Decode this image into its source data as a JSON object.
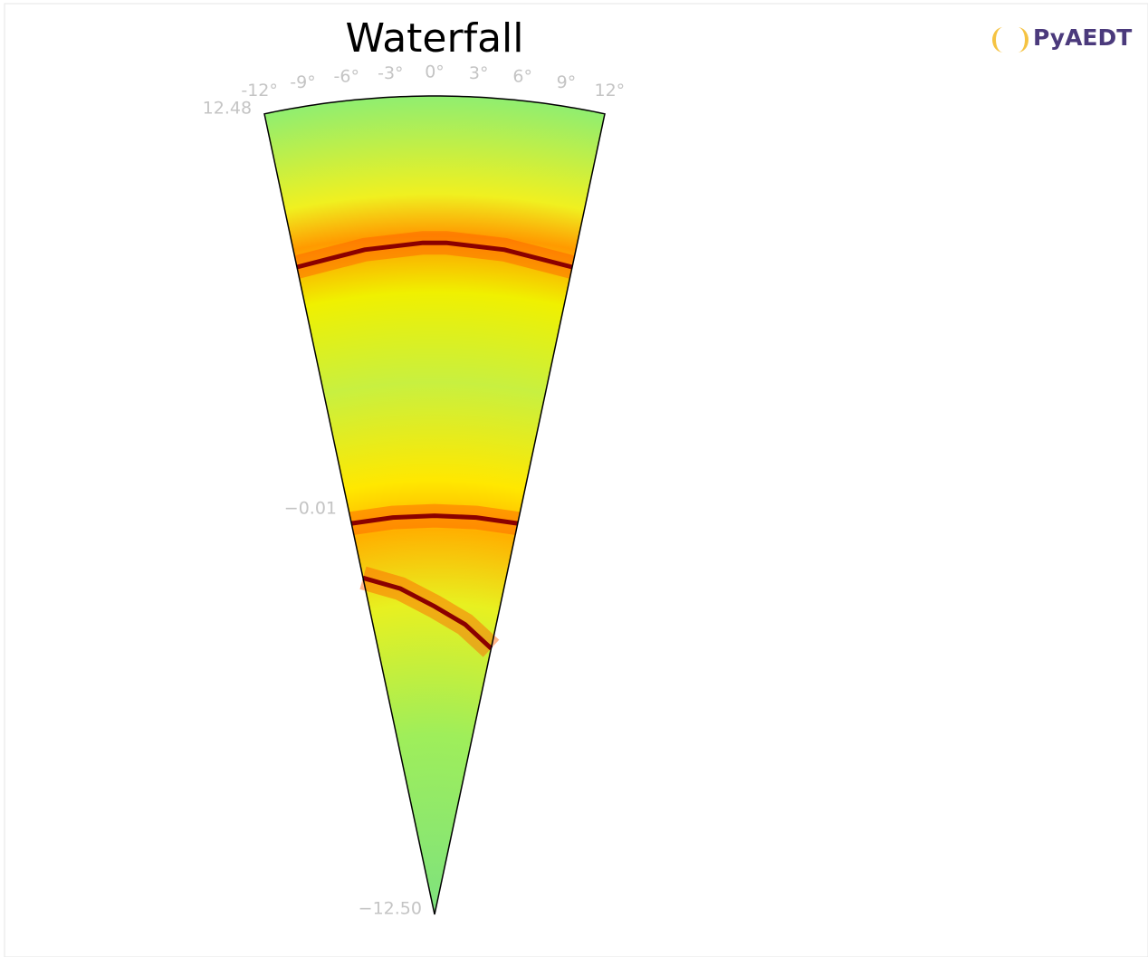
{
  "chart_data": {
    "type": "polar-wedge",
    "title": "Waterfall",
    "logo": "PyAEDT",
    "thetalim": [
      -12,
      12
    ],
    "rlim": [
      -12.5,
      12.48
    ],
    "thetaticks": [
      {
        "value": -12,
        "label": "-12°"
      },
      {
        "value": -9,
        "label": "-9°"
      },
      {
        "value": -6,
        "label": "-6°"
      },
      {
        "value": -3,
        "label": "-3°"
      },
      {
        "value": 0,
        "label": "0°"
      },
      {
        "value": 3,
        "label": "3°"
      },
      {
        "value": 6,
        "label": "6°"
      },
      {
        "value": 9,
        "label": "9°"
      },
      {
        "value": 12,
        "label": "12°"
      }
    ],
    "rticks": [
      12.48,
      {
        "value": -0.01,
        "label": "−0.01"
      },
      {
        "value": -12.5,
        "label": "−12.50"
      }
    ],
    "ridge_color": "#8b0000",
    "series": [
      {
        "theta": [
          -12,
          -6,
          -1,
          1,
          6,
          12
        ],
        "r": [
          7.7,
          7.9,
          8.0,
          8.0,
          7.9,
          7.7
        ]
      },
      {
        "theta": [
          -12,
          -6,
          0,
          6,
          12
        ],
        "r": [
          -0.3,
          -0.32,
          -0.33,
          -0.32,
          -0.3
        ]
      },
      {
        "theta": [
          -12,
          -6,
          0,
          6,
          12
        ],
        "r": [
          -2.0,
          -2.5,
          -3.1,
          -3.6,
          -4.2
        ]
      }
    ]
  }
}
